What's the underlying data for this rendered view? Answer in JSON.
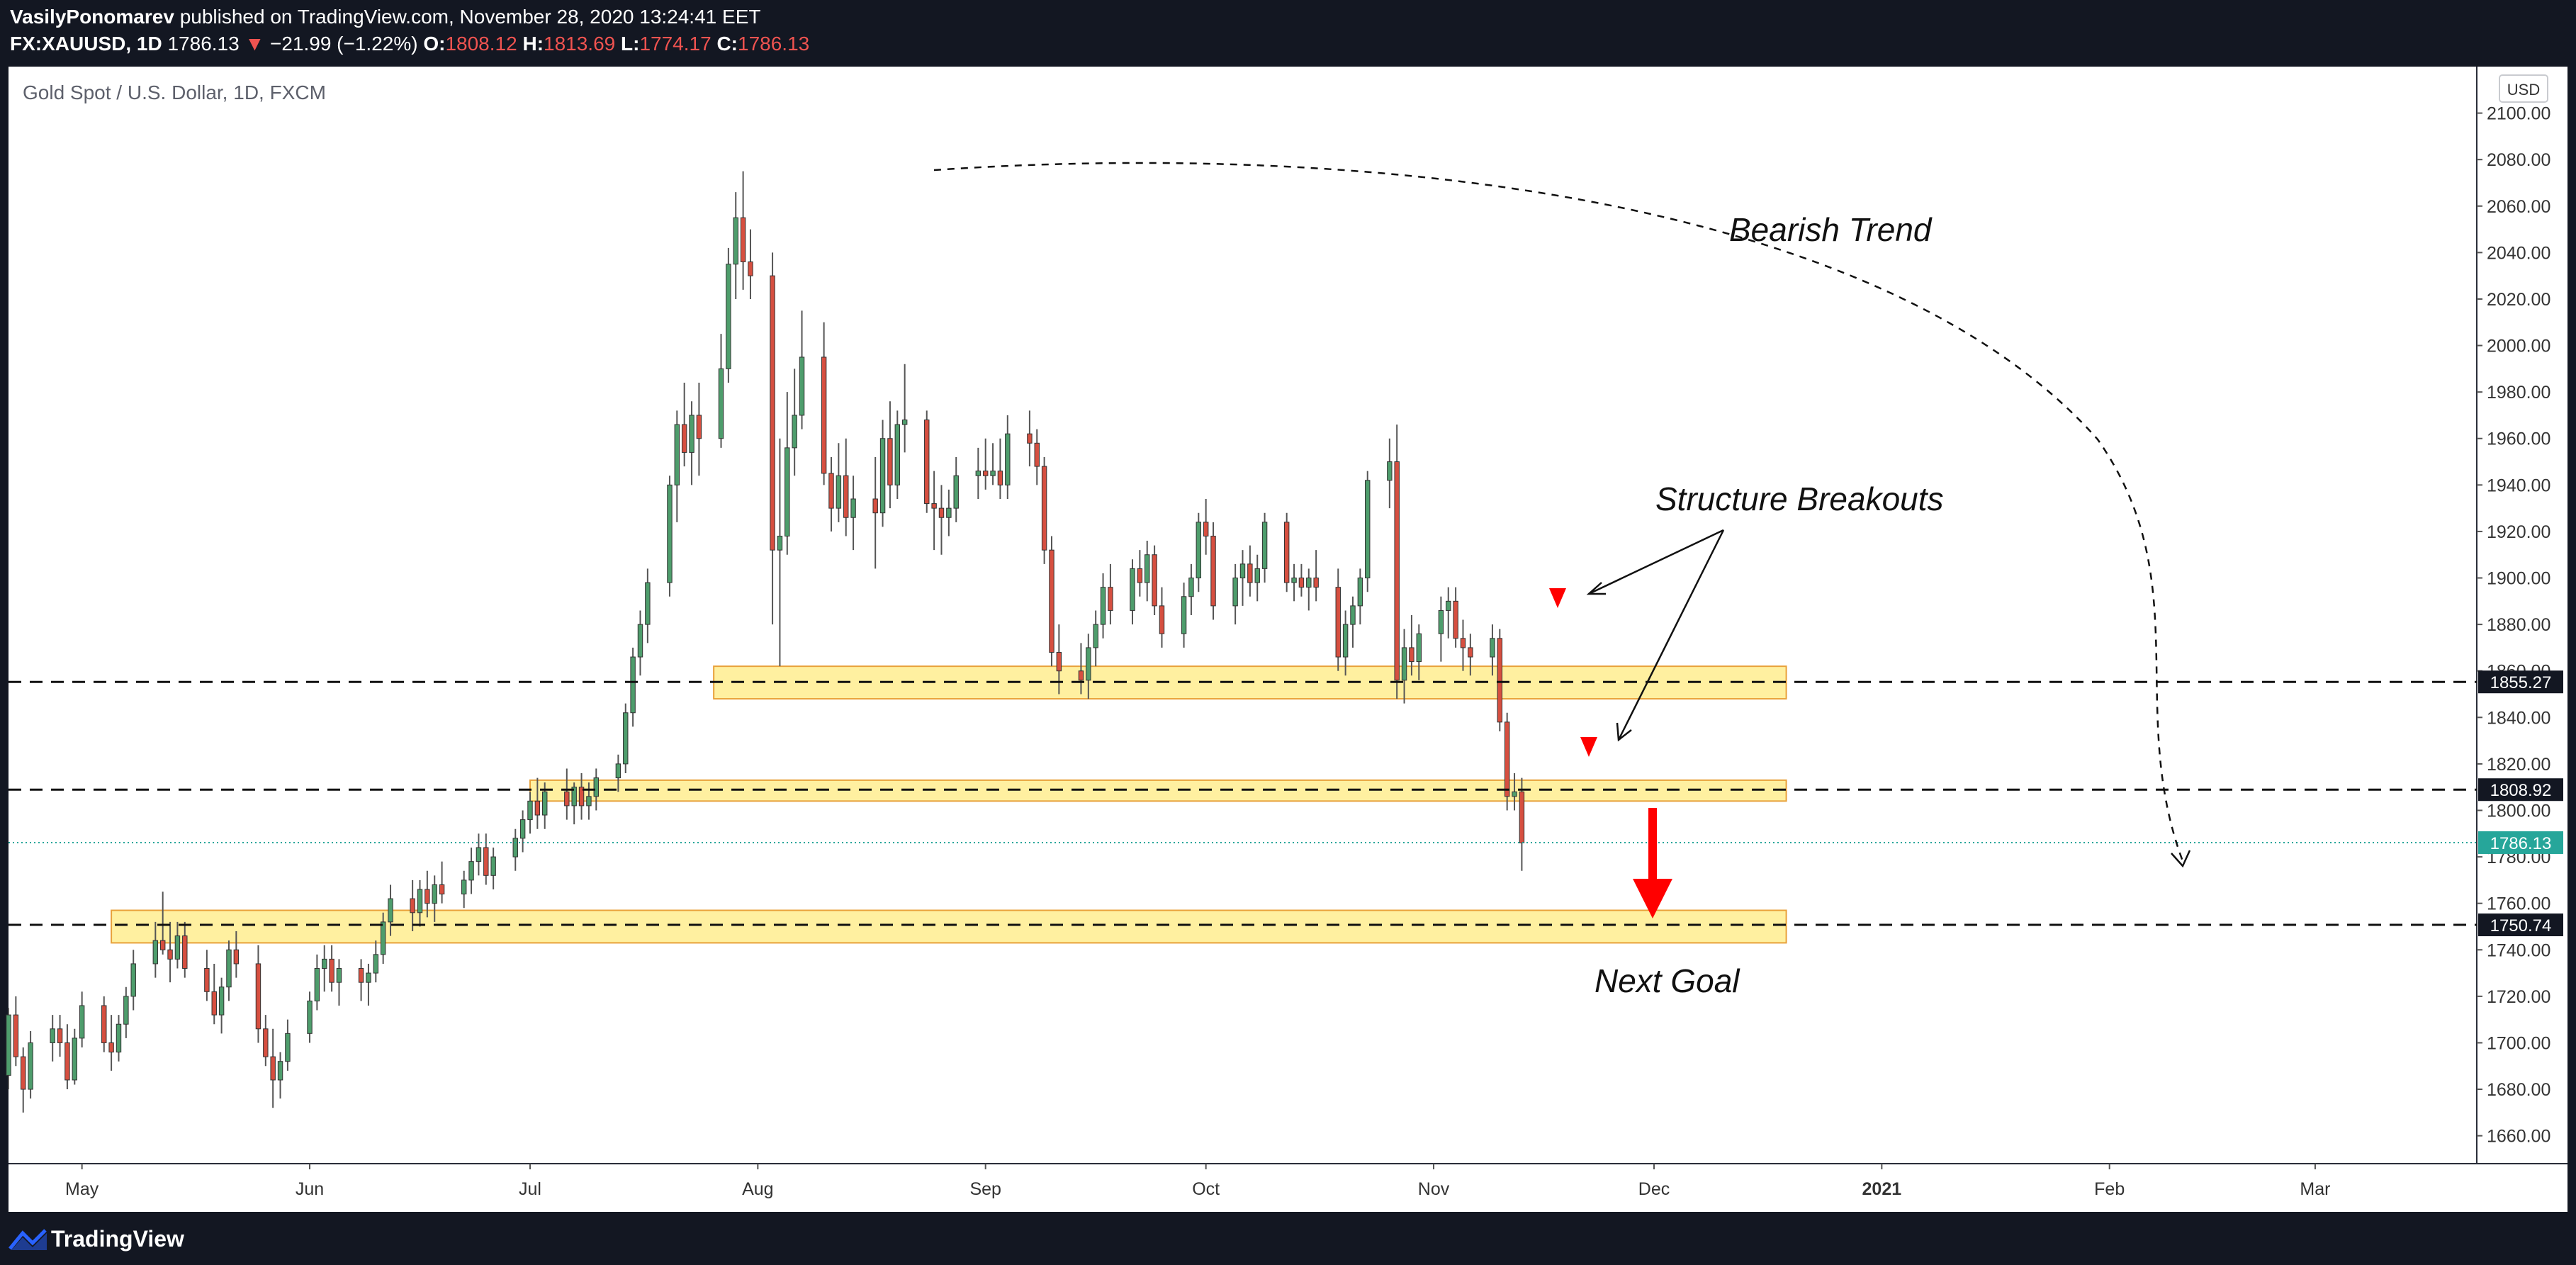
{
  "header": {
    "author": "VasilyPonomarev",
    "published": "published on TradingView.com, November 28, 2020 13:24:41 EET",
    "symbol": "FX:XAUUSD, 1D",
    "last": "1786.13",
    "change": "−21.99 (−1.22%)",
    "o_label": "O:",
    "o_val": "1808.12",
    "h_label": "H:",
    "h_val": "1813.69",
    "l_label": "L:",
    "l_val": "1774.17",
    "c_val": "1786.13"
  },
  "footer": {
    "brand": "TradingView"
  },
  "colors": {
    "bg": "#ffffff",
    "up": "#4e9d6c",
    "down": "#d64f40",
    "zone": "#ffeb80",
    "zone_border": "#e8a13a",
    "arrow": "#ff0000",
    "price_tag": "#26a69a",
    "dark": "#131722"
  },
  "chart_data": {
    "type": "candlestick",
    "title": "Gold Spot / U.S. Dollar, 1D, FXCM",
    "currency": "USD",
    "y_ticks": [
      1660,
      1680,
      1700,
      1720,
      1740,
      1760,
      1780,
      1800,
      1820,
      1840,
      1860,
      1880,
      1900,
      1920,
      1940,
      1960,
      1980,
      2000,
      2020,
      2040,
      2060,
      2080,
      2100
    ],
    "y_range": [
      1648,
      2120
    ],
    "x_axis": {
      "start": "2020-04-21",
      "end": "2021-03-23",
      "ticks": [
        {
          "date": "2020-05-01",
          "label": "May"
        },
        {
          "date": "2020-06-01",
          "label": "Jun"
        },
        {
          "date": "2020-07-01",
          "label": "Jul"
        },
        {
          "date": "2020-08-01",
          "label": "Aug"
        },
        {
          "date": "2020-09-01",
          "label": "Sep"
        },
        {
          "date": "2020-10-01",
          "label": "Oct"
        },
        {
          "date": "2020-11-01",
          "label": "Nov"
        },
        {
          "date": "2020-12-01",
          "label": "Dec"
        },
        {
          "date": "2021-01-01",
          "label": "2021"
        },
        {
          "date": "2021-02-01",
          "label": "Feb"
        },
        {
          "date": "2021-03-01",
          "label": "Mar"
        }
      ]
    },
    "ohlc_start": "2020-04-21",
    "ohlc": [
      [
        1686,
        1715,
        1680,
        1712
      ],
      [
        1712,
        1720,
        1690,
        1694
      ],
      [
        1694,
        1698,
        1670,
        1680
      ],
      [
        1680,
        1705,
        1676,
        1700
      ],
      [
        1700,
        1712,
        1692,
        1706
      ],
      [
        1706,
        1712,
        1694,
        1700
      ],
      [
        1700,
        1708,
        1680,
        1684
      ],
      [
        1684,
        1706,
        1682,
        1702
      ],
      [
        1702,
        1722,
        1698,
        1716
      ],
      [
        1716,
        1720,
        1696,
        1700
      ],
      [
        1700,
        1712,
        1688,
        1696
      ],
      [
        1696,
        1712,
        1692,
        1708
      ],
      [
        1708,
        1724,
        1702,
        1720
      ],
      [
        1720,
        1740,
        1714,
        1734
      ],
      [
        1734,
        1752,
        1728,
        1744
      ],
      [
        1744,
        1765,
        1738,
        1740
      ],
      [
        1740,
        1752,
        1726,
        1736
      ],
      [
        1736,
        1752,
        1732,
        1746
      ],
      [
        1746,
        1752,
        1728,
        1732
      ],
      [
        1732,
        1740,
        1718,
        1722
      ],
      [
        1722,
        1734,
        1708,
        1712
      ],
      [
        1712,
        1728,
        1704,
        1724
      ],
      [
        1724,
        1744,
        1718,
        1740
      ],
      [
        1740,
        1748,
        1728,
        1734
      ],
      [
        1734,
        1742,
        1700,
        1706
      ],
      [
        1706,
        1712,
        1690,
        1694
      ],
      [
        1694,
        1706,
        1672,
        1684
      ],
      [
        1684,
        1696,
        1676,
        1692
      ],
      [
        1692,
        1710,
        1688,
        1704
      ],
      [
        1704,
        1722,
        1700,
        1718
      ],
      [
        1718,
        1738,
        1714,
        1732
      ],
      [
        1732,
        1742,
        1722,
        1736
      ],
      [
        1736,
        1742,
        1722,
        1726
      ],
      [
        1726,
        1736,
        1716,
        1732
      ],
      [
        1732,
        1736,
        1718,
        1726
      ],
      [
        1726,
        1734,
        1716,
        1730
      ],
      [
        1730,
        1744,
        1726,
        1738
      ],
      [
        1738,
        1756,
        1734,
        1752
      ],
      [
        1752,
        1768,
        1746,
        1762
      ],
      [
        1762,
        1770,
        1748,
        1756
      ],
      [
        1756,
        1770,
        1750,
        1766
      ],
      [
        1766,
        1774,
        1754,
        1760
      ],
      [
        1760,
        1772,
        1752,
        1768
      ],
      [
        1768,
        1778,
        1760,
        1764
      ],
      [
        1764,
        1774,
        1758,
        1770
      ],
      [
        1770,
        1784,
        1764,
        1778
      ],
      [
        1778,
        1790,
        1772,
        1784
      ],
      [
        1784,
        1790,
        1768,
        1772
      ],
      [
        1772,
        1784,
        1766,
        1780
      ],
      [
        1780,
        1792,
        1774,
        1788
      ],
      [
        1788,
        1800,
        1782,
        1796
      ],
      [
        1796,
        1808,
        1790,
        1804
      ],
      [
        1804,
        1814,
        1792,
        1798
      ],
      [
        1798,
        1812,
        1792,
        1808
      ],
      [
        1808,
        1818,
        1796,
        1802
      ],
      [
        1802,
        1812,
        1794,
        1810
      ],
      [
        1810,
        1816,
        1796,
        1802
      ],
      [
        1802,
        1812,
        1796,
        1806
      ],
      [
        1806,
        1818,
        1800,
        1814
      ],
      [
        1814,
        1824,
        1808,
        1820
      ],
      [
        1820,
        1846,
        1816,
        1842
      ],
      [
        1842,
        1870,
        1836,
        1866
      ],
      [
        1866,
        1886,
        1858,
        1880
      ],
      [
        1880,
        1904,
        1872,
        1898
      ],
      [
        1898,
        1944,
        1892,
        1940
      ],
      [
        1940,
        1972,
        1924,
        1966
      ],
      [
        1966,
        1984,
        1948,
        1954
      ],
      [
        1954,
        1976,
        1940,
        1970
      ],
      [
        1970,
        1984,
        1944,
        1960
      ],
      [
        1960,
        2005,
        1956,
        1990
      ],
      [
        1990,
        2042,
        1984,
        2035
      ],
      [
        2035,
        2066,
        2020,
        2055
      ],
      [
        2055,
        2075,
        2024,
        2036
      ],
      [
        2036,
        2050,
        2020,
        2030
      ],
      [
        2030,
        2040,
        1880,
        1912
      ],
      [
        1912,
        1960,
        1862,
        1918
      ],
      [
        1918,
        1980,
        1910,
        1956
      ],
      [
        1956,
        1990,
        1944,
        1970
      ],
      [
        1970,
        2015,
        1964,
        1995
      ],
      [
        1995,
        2010,
        1940,
        1945
      ],
      [
        1945,
        1952,
        1920,
        1930
      ],
      [
        1930,
        1958,
        1924,
        1944
      ],
      [
        1944,
        1960,
        1918,
        1926
      ],
      [
        1926,
        1944,
        1912,
        1934
      ],
      [
        1934,
        1952,
        1904,
        1928
      ],
      [
        1928,
        1968,
        1922,
        1960
      ],
      [
        1960,
        1976,
        1930,
        1940
      ],
      [
        1940,
        1972,
        1934,
        1966
      ],
      [
        1966,
        1992,
        1954,
        1968
      ],
      [
        1968,
        1972,
        1928,
        1932
      ],
      [
        1932,
        1946,
        1912,
        1930
      ],
      [
        1930,
        1940,
        1910,
        1926
      ],
      [
        1926,
        1938,
        1918,
        1930
      ],
      [
        1930,
        1952,
        1924,
        1944
      ],
      [
        1944,
        1956,
        1934,
        1946
      ],
      [
        1946,
        1960,
        1938,
        1944
      ],
      [
        1944,
        1958,
        1940,
        1946
      ],
      [
        1946,
        1960,
        1934,
        1940
      ],
      [
        1940,
        1970,
        1934,
        1962
      ],
      [
        1962,
        1972,
        1948,
        1958
      ],
      [
        1958,
        1964,
        1940,
        1948
      ],
      [
        1948,
        1952,
        1906,
        1912
      ],
      [
        1912,
        1918,
        1862,
        1868
      ],
      [
        1868,
        1880,
        1850,
        1860
      ],
      [
        1860,
        1872,
        1850,
        1856
      ],
      [
        1856,
        1876,
        1848,
        1870
      ],
      [
        1870,
        1886,
        1862,
        1880
      ],
      [
        1880,
        1902,
        1874,
        1896
      ],
      [
        1896,
        1906,
        1880,
        1886
      ],
      [
        1886,
        1908,
        1880,
        1904
      ],
      [
        1904,
        1912,
        1892,
        1898
      ],
      [
        1898,
        1916,
        1890,
        1910
      ],
      [
        1910,
        1914,
        1884,
        1888
      ],
      [
        1888,
        1896,
        1870,
        1876
      ],
      [
        1876,
        1898,
        1870,
        1892
      ],
      [
        1892,
        1906,
        1884,
        1900
      ],
      [
        1900,
        1928,
        1894,
        1924
      ],
      [
        1924,
        1934,
        1910,
        1918
      ],
      [
        1918,
        1924,
        1882,
        1888
      ],
      [
        1888,
        1906,
        1880,
        1900
      ],
      [
        1900,
        1912,
        1888,
        1906
      ],
      [
        1906,
        1914,
        1892,
        1898
      ],
      [
        1898,
        1910,
        1890,
        1904
      ],
      [
        1904,
        1928,
        1898,
        1924
      ],
      [
        1924,
        1928,
        1894,
        1898
      ],
      [
        1898,
        1906,
        1890,
        1900
      ],
      [
        1900,
        1906,
        1892,
        1896
      ],
      [
        1896,
        1904,
        1886,
        1900
      ],
      [
        1900,
        1912,
        1890,
        1896
      ],
      [
        1896,
        1904,
        1860,
        1866
      ],
      [
        1866,
        1886,
        1858,
        1880
      ],
      [
        1880,
        1892,
        1870,
        1888
      ],
      [
        1888,
        1904,
        1880,
        1900
      ],
      [
        1900,
        1946,
        1894,
        1942
      ],
      [
        1942,
        1960,
        1930,
        1950
      ],
      [
        1950,
        1966,
        1848,
        1856
      ],
      [
        1856,
        1878,
        1846,
        1870
      ],
      [
        1870,
        1884,
        1858,
        1864
      ],
      [
        1864,
        1880,
        1856,
        1876
      ],
      [
        1876,
        1892,
        1864,
        1886
      ],
      [
        1886,
        1896,
        1874,
        1890
      ],
      [
        1890,
        1896,
        1870,
        1874
      ],
      [
        1874,
        1882,
        1860,
        1870
      ],
      [
        1870,
        1876,
        1858,
        1866
      ],
      [
        1866,
        1880,
        1858,
        1874
      ],
      [
        1874,
        1878,
        1834,
        1838
      ],
      [
        1838,
        1842,
        1800,
        1806
      ],
      [
        1806,
        1816,
        1800,
        1808
      ],
      [
        1808,
        1814,
        1774,
        1786
      ]
    ],
    "zones": [
      {
        "from": "2020-07-26",
        "to": "2020-12-19",
        "top": 1862,
        "bottom": 1848
      },
      {
        "from": "2020-07-01",
        "to": "2020-12-19",
        "top": 1813,
        "bottom": 1804
      },
      {
        "from": "2020-05-05",
        "to": "2020-12-19",
        "top": 1757,
        "bottom": 1743
      }
    ],
    "levels": [
      {
        "value": 1855.27,
        "label": "1855.27"
      },
      {
        "value": 1808.92,
        "label": "1808.92"
      },
      {
        "value": 1750.74,
        "label": "1750.74"
      }
    ],
    "last_price": {
      "value": 1786.13,
      "label": "1786.13"
    },
    "annotations": {
      "bearish": "Bearish Trend",
      "breakouts": "Structure Breakouts",
      "goal": "Next Goal"
    }
  }
}
